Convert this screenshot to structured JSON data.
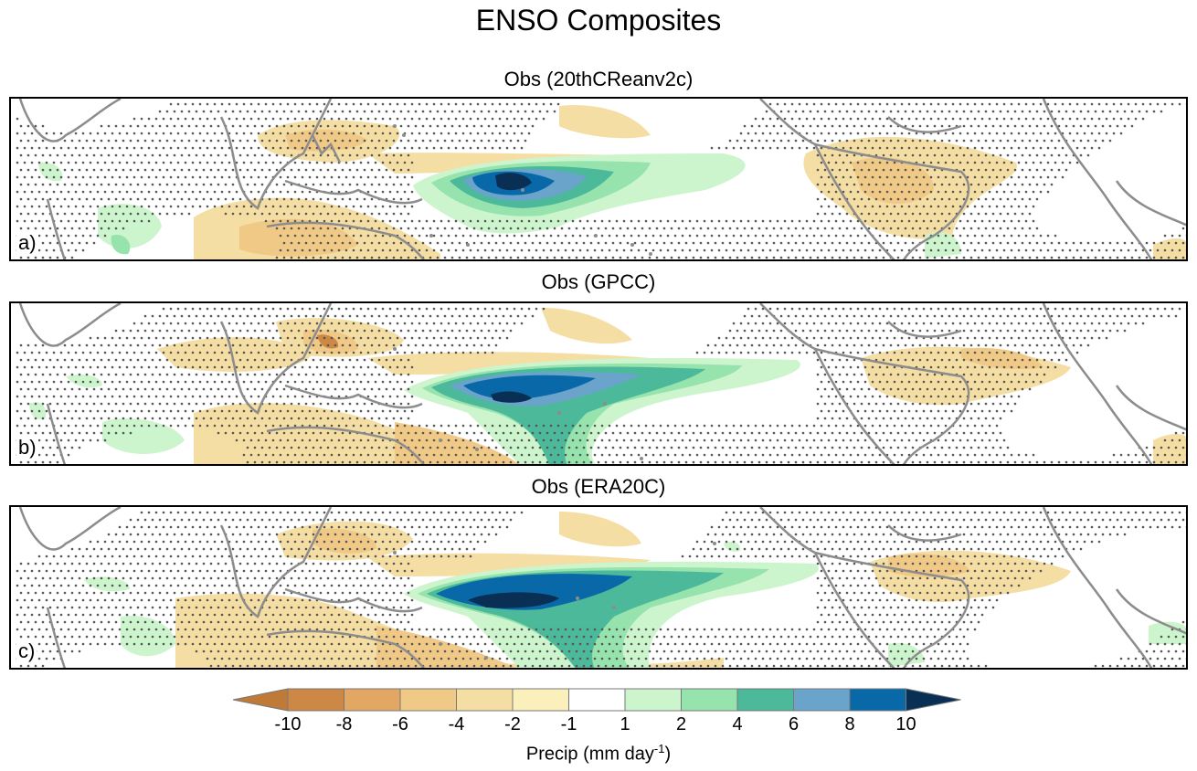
{
  "figure_title": "ENSO Composites",
  "panels": [
    {
      "title": "Obs (20thCReanv2c)",
      "label": "a)"
    },
    {
      "title": "Obs (GPCC)",
      "label": "b)"
    },
    {
      "title": "Obs (ERA20C)",
      "label": "c)"
    }
  ],
  "colorbar": {
    "caption_main": "Precip (mm day",
    "caption_sup": "-1",
    "caption_end": ")",
    "ticks": [
      "-10",
      "-8",
      "-6",
      "-4",
      "-2",
      "-1",
      "1",
      "2",
      "4",
      "6",
      "8",
      "10"
    ],
    "colors": [
      "#c07a38",
      "#cd8846",
      "#e2a762",
      "#f1c987",
      "#f5dea3",
      "#fbf0bc",
      "#ffffff",
      "#cdf5cd",
      "#96e3ad",
      "#4cb99a",
      "#6aa4cb",
      "#0968a8",
      "#092f54"
    ]
  },
  "map_colors": {
    "coast": "#8c8c8c",
    "stipple": "#555555"
  }
}
